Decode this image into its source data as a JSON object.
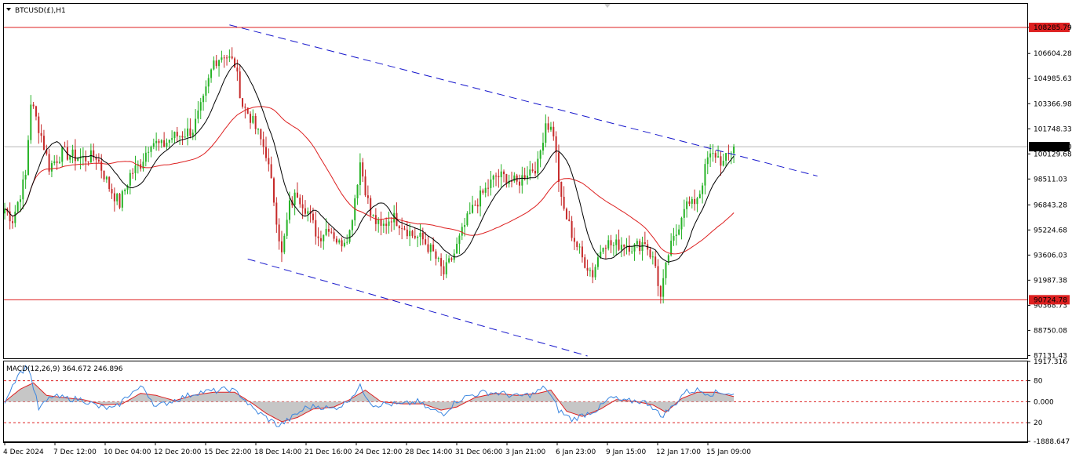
{
  "window": {
    "symbol_title": "BTCUSD(£),H1",
    "indicator_title": "MACD(12,26,9) 364.672 246.896"
  },
  "colors": {
    "background": "#ffffff",
    "bull_candle": "#27b327",
    "bear_candle": "#c62a2a",
    "sma_fast": "#000000",
    "sma_slow": "#dd2020",
    "channel": "#1515cc",
    "hline": "#dd2020",
    "macd_line": "#3a86e0",
    "signal_line": "#dd2020",
    "histogram": "#c0c0c0",
    "price_tag": "#dd2020",
    "current_tag": "#000000"
  },
  "chart_data": [
    {
      "type": "candlestick",
      "timeframe": "H1",
      "price_axis_ticks": [
        "108285.79",
        "106604.28",
        "104985.63",
        "103366.98",
        "101748.33",
        "100129.68",
        "98511.03",
        "96843.28",
        "95224.68",
        "93606.03",
        "91987.38",
        "90368.73",
        "88750.08",
        "87131.43"
      ],
      "ylim": [
        86950,
        109800
      ],
      "time_axis_ticks": [
        "4 Dec 2024",
        "7 Dec 12:00",
        "10 Dec 04:00",
        "12 Dec 20:00",
        "15 Dec 22:00",
        "18 Dec 14:00",
        "21 Dec 16:00",
        "24 Dec 12:00",
        "28 Dec 14:00",
        "31 Dec 06:00",
        "3 Jan 21:00",
        "6 Jan 23:00",
        "9 Jan 15:00",
        "12 Jan 17:00",
        "15 Jan 09:00"
      ],
      "horizontal_lines": [
        {
          "label": "108285.79",
          "value": 108285.79
        },
        {
          "label": "90724.78",
          "value": 90724.78
        }
      ],
      "current_price": {
        "label": "100596.00",
        "value": 100596.0
      },
      "price_path": [
        {
          "x": 0,
          "y": 96600
        },
        {
          "x": 3,
          "y": 95900
        },
        {
          "x": 8,
          "y": 98700
        },
        {
          "x": 10,
          "y": 103500
        },
        {
          "x": 14,
          "y": 101300
        },
        {
          "x": 17,
          "y": 99300
        },
        {
          "x": 22,
          "y": 100200
        },
        {
          "x": 30,
          "y": 99800
        },
        {
          "x": 35,
          "y": 100000
        },
        {
          "x": 40,
          "y": 98000
        },
        {
          "x": 44,
          "y": 96900
        },
        {
          "x": 48,
          "y": 98800
        },
        {
          "x": 52,
          "y": 99500
        },
        {
          "x": 56,
          "y": 101000
        },
        {
          "x": 60,
          "y": 100600
        },
        {
          "x": 64,
          "y": 101200
        },
        {
          "x": 68,
          "y": 101400
        },
        {
          "x": 72,
          "y": 101700
        },
        {
          "x": 76,
          "y": 103500
        },
        {
          "x": 80,
          "y": 106100
        },
        {
          "x": 84,
          "y": 106600
        },
        {
          "x": 88,
          "y": 105900
        },
        {
          "x": 91,
          "y": 103300
        },
        {
          "x": 94,
          "y": 102500
        },
        {
          "x": 97,
          "y": 101400
        },
        {
          "x": 100,
          "y": 100200
        },
        {
          "x": 103,
          "y": 97200
        },
        {
          "x": 106,
          "y": 93600
        },
        {
          "x": 109,
          "y": 96800
        },
        {
          "x": 112,
          "y": 97600
        },
        {
          "x": 116,
          "y": 96400
        },
        {
          "x": 120,
          "y": 94700
        },
        {
          "x": 124,
          "y": 95500
        },
        {
          "x": 128,
          "y": 94300
        },
        {
          "x": 132,
          "y": 95100
        },
        {
          "x": 136,
          "y": 99600
        },
        {
          "x": 140,
          "y": 96200
        },
        {
          "x": 144,
          "y": 95300
        },
        {
          "x": 148,
          "y": 96100
        },
        {
          "x": 152,
          "y": 95600
        },
        {
          "x": 156,
          "y": 94900
        },
        {
          "x": 160,
          "y": 94600
        },
        {
          "x": 164,
          "y": 93700
        },
        {
          "x": 168,
          "y": 92400
        },
        {
          "x": 172,
          "y": 93700
        },
        {
          "x": 176,
          "y": 95500
        },
        {
          "x": 180,
          "y": 96900
        },
        {
          "x": 184,
          "y": 97800
        },
        {
          "x": 188,
          "y": 98700
        },
        {
          "x": 192,
          "y": 98600
        },
        {
          "x": 196,
          "y": 98200
        },
        {
          "x": 200,
          "y": 99000
        },
        {
          "x": 204,
          "y": 99400
        },
        {
          "x": 207,
          "y": 102200
        },
        {
          "x": 210,
          "y": 101500
        },
        {
          "x": 213,
          "y": 97000
        },
        {
          "x": 217,
          "y": 95000
        },
        {
          "x": 221,
          "y": 93400
        },
        {
          "x": 225,
          "y": 92400
        },
        {
          "x": 229,
          "y": 94500
        },
        {
          "x": 233,
          "y": 94200
        },
        {
          "x": 237,
          "y": 94400
        },
        {
          "x": 241,
          "y": 94100
        },
        {
          "x": 245,
          "y": 94500
        },
        {
          "x": 249,
          "y": 92900
        },
        {
          "x": 251,
          "y": 90800
        },
        {
          "x": 254,
          "y": 93700
        },
        {
          "x": 257,
          "y": 95000
        },
        {
          "x": 260,
          "y": 96900
        },
        {
          "x": 263,
          "y": 96800
        },
        {
          "x": 266,
          "y": 97700
        },
        {
          "x": 269,
          "y": 99800
        },
        {
          "x": 272,
          "y": 100100
        },
        {
          "x": 275,
          "y": 99500
        },
        {
          "x": 279,
          "y": 100596
        }
      ],
      "channel_upper": [
        {
          "x": 86,
          "y": 108450
        },
        {
          "x": 311,
          "y": 98700
        }
      ],
      "channel_lower": [
        {
          "x": 93,
          "y": 93350
        },
        {
          "x": 223,
          "y": 87100
        }
      ]
    },
    {
      "type": "macd",
      "params": "12,26,9",
      "macd_value": 364.672,
      "signal_value": 246.896,
      "axis_ticks": [
        "1917.316",
        "80",
        "0.000",
        "20",
        "-1888.647"
      ],
      "ylim": [
        -1888.647,
        1917.316
      ],
      "levels": [
        {
          "label": "80",
          "value": 1000
        },
        {
          "label": "0.000",
          "value": 0
        },
        {
          "label": "20",
          "value": -1000
        }
      ],
      "macd_path": [
        {
          "x": 0,
          "y": 50
        },
        {
          "x": 5,
          "y": 1300
        },
        {
          "x": 9,
          "y": 1700
        },
        {
          "x": 13,
          "y": -350
        },
        {
          "x": 18,
          "y": 250
        },
        {
          "x": 24,
          "y": 150
        },
        {
          "x": 30,
          "y": 100
        },
        {
          "x": 36,
          "y": -250
        },
        {
          "x": 42,
          "y": -350
        },
        {
          "x": 48,
          "y": 400
        },
        {
          "x": 53,
          "y": 700
        },
        {
          "x": 58,
          "y": -250
        },
        {
          "x": 63,
          "y": 0
        },
        {
          "x": 68,
          "y": 200
        },
        {
          "x": 74,
          "y": 450
        },
        {
          "x": 80,
          "y": 500
        },
        {
          "x": 86,
          "y": 600
        },
        {
          "x": 90,
          "y": 350
        },
        {
          "x": 95,
          "y": -350
        },
        {
          "x": 100,
          "y": -750
        },
        {
          "x": 105,
          "y": -1150
        },
        {
          "x": 110,
          "y": -750
        },
        {
          "x": 115,
          "y": -300
        },
        {
          "x": 120,
          "y": -200
        },
        {
          "x": 125,
          "y": -350
        },
        {
          "x": 130,
          "y": -100
        },
        {
          "x": 136,
          "y": 700
        },
        {
          "x": 141,
          "y": -150
        },
        {
          "x": 146,
          "y": -100
        },
        {
          "x": 152,
          "y": -150
        },
        {
          "x": 158,
          "y": 0
        },
        {
          "x": 163,
          "y": -400
        },
        {
          "x": 168,
          "y": -550
        },
        {
          "x": 173,
          "y": 50
        },
        {
          "x": 178,
          "y": 300
        },
        {
          "x": 184,
          "y": 450
        },
        {
          "x": 190,
          "y": 400
        },
        {
          "x": 196,
          "y": 250
        },
        {
          "x": 202,
          "y": 350
        },
        {
          "x": 207,
          "y": 700
        },
        {
          "x": 212,
          "y": -400
        },
        {
          "x": 217,
          "y": -850
        },
        {
          "x": 222,
          "y": -600
        },
        {
          "x": 227,
          "y": -350
        },
        {
          "x": 232,
          "y": 200
        },
        {
          "x": 237,
          "y": 0
        },
        {
          "x": 242,
          "y": 50
        },
        {
          "x": 247,
          "y": -100
        },
        {
          "x": 251,
          "y": -700
        },
        {
          "x": 256,
          "y": -200
        },
        {
          "x": 260,
          "y": 450
        },
        {
          "x": 265,
          "y": 550
        },
        {
          "x": 270,
          "y": 400
        },
        {
          "x": 275,
          "y": 450
        },
        {
          "x": 279,
          "y": 364.672
        }
      ],
      "signal_path": [
        {
          "x": 0,
          "y": 0
        },
        {
          "x": 6,
          "y": 600
        },
        {
          "x": 11,
          "y": 900
        },
        {
          "x": 16,
          "y": 300
        },
        {
          "x": 22,
          "y": 200
        },
        {
          "x": 30,
          "y": 100
        },
        {
          "x": 38,
          "y": -150
        },
        {
          "x": 45,
          "y": -100
        },
        {
          "x": 52,
          "y": 400
        },
        {
          "x": 58,
          "y": 300
        },
        {
          "x": 65,
          "y": 50
        },
        {
          "x": 72,
          "y": 300
        },
        {
          "x": 80,
          "y": 450
        },
        {
          "x": 88,
          "y": 450
        },
        {
          "x": 95,
          "y": -100
        },
        {
          "x": 100,
          "y": -550
        },
        {
          "x": 106,
          "y": -950
        },
        {
          "x": 112,
          "y": -750
        },
        {
          "x": 118,
          "y": -350
        },
        {
          "x": 126,
          "y": -250
        },
        {
          "x": 132,
          "y": 100
        },
        {
          "x": 138,
          "y": 550
        },
        {
          "x": 144,
          "y": 0
        },
        {
          "x": 152,
          "y": -100
        },
        {
          "x": 160,
          "y": -100
        },
        {
          "x": 167,
          "y": -400
        },
        {
          "x": 173,
          "y": -250
        },
        {
          "x": 180,
          "y": 200
        },
        {
          "x": 188,
          "y": 400
        },
        {
          "x": 196,
          "y": 300
        },
        {
          "x": 204,
          "y": 400
        },
        {
          "x": 209,
          "y": 550
        },
        {
          "x": 215,
          "y": -450
        },
        {
          "x": 221,
          "y": -700
        },
        {
          "x": 228,
          "y": -350
        },
        {
          "x": 234,
          "y": 100
        },
        {
          "x": 242,
          "y": 0
        },
        {
          "x": 248,
          "y": -150
        },
        {
          "x": 253,
          "y": -500
        },
        {
          "x": 259,
          "y": 150
        },
        {
          "x": 265,
          "y": 450
        },
        {
          "x": 272,
          "y": 450
        },
        {
          "x": 279,
          "y": 246.896
        }
      ]
    }
  ]
}
